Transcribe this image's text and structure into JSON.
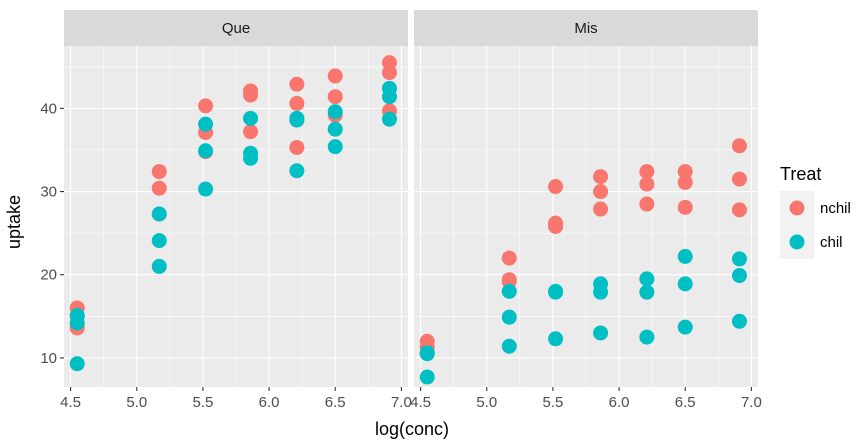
{
  "chart_data": {
    "type": "scatter",
    "xlabel": "log(conc)",
    "ylabel": "uptake",
    "xlim": [
      4.45,
      7.05
    ],
    "ylim": [
      6.5,
      47.5
    ],
    "x_ticks": [
      4.5,
      5.0,
      5.5,
      6.0,
      6.5,
      7.0
    ],
    "x_tick_labels": [
      "4.5",
      "5.0",
      "5.5",
      "6.0",
      "6.5",
      "7.0"
    ],
    "y_ticks": [
      10,
      20,
      30,
      40
    ],
    "y_tick_labels": [
      "10",
      "20",
      "30",
      "40"
    ],
    "grid": true,
    "legend": {
      "title": "Treat",
      "position": "right",
      "entries": [
        {
          "label": "nchil",
          "color": "#F8766D"
        },
        {
          "label": "chil",
          "color": "#00BFC4"
        }
      ]
    },
    "facets": [
      {
        "label": "Que",
        "series": [
          {
            "name": "nchil",
            "color": "#F8766D",
            "points": [
              [
                4.55,
                16.0
              ],
              [
                4.55,
                15.0
              ],
              [
                4.55,
                13.6
              ],
              [
                5.17,
                32.4
              ],
              [
                5.17,
                30.4
              ],
              [
                5.17,
                27.3
              ],
              [
                5.52,
                40.3
              ],
              [
                5.52,
                37.1
              ],
              [
                5.52,
                34.8
              ],
              [
                5.86,
                42.1
              ],
              [
                5.86,
                41.6
              ],
              [
                5.86,
                37.2
              ],
              [
                6.21,
                42.9
              ],
              [
                6.21,
                40.6
              ],
              [
                6.21,
                35.3
              ],
              [
                6.5,
                43.9
              ],
              [
                6.5,
                41.4
              ],
              [
                6.5,
                39.2
              ],
              [
                6.91,
                45.5
              ],
              [
                6.91,
                44.3
              ],
              [
                6.91,
                39.7
              ]
            ]
          },
          {
            "name": "chil",
            "color": "#00BFC4",
            "points": [
              [
                4.55,
                15.1
              ],
              [
                4.55,
                14.2
              ],
              [
                4.55,
                9.3
              ],
              [
                5.17,
                27.3
              ],
              [
                5.17,
                24.1
              ],
              [
                5.17,
                21.0
              ],
              [
                5.52,
                38.1
              ],
              [
                5.52,
                34.9
              ],
              [
                5.52,
                30.3
              ],
              [
                5.86,
                38.8
              ],
              [
                5.86,
                34.6
              ],
              [
                5.86,
                34.0
              ],
              [
                6.21,
                38.8
              ],
              [
                6.21,
                38.6
              ],
              [
                6.21,
                32.5
              ],
              [
                6.5,
                39.6
              ],
              [
                6.5,
                37.5
              ],
              [
                6.5,
                35.4
              ],
              [
                6.91,
                42.4
              ],
              [
                6.91,
                41.4
              ],
              [
                6.91,
                38.7
              ]
            ]
          }
        ]
      },
      {
        "label": "Mis",
        "series": [
          {
            "name": "nchil",
            "color": "#F8766D",
            "points": [
              [
                4.55,
                12.0
              ],
              [
                4.55,
                11.3
              ],
              [
                4.55,
                10.6
              ],
              [
                5.17,
                22.0
              ],
              [
                5.17,
                19.4
              ],
              [
                5.17,
                19.2
              ],
              [
                5.52,
                30.6
              ],
              [
                5.52,
                26.2
              ],
              [
                5.52,
                25.8
              ],
              [
                5.86,
                31.8
              ],
              [
                5.86,
                30.0
              ],
              [
                5.86,
                27.9
              ],
              [
                6.21,
                32.4
              ],
              [
                6.21,
                30.9
              ],
              [
                6.21,
                28.5
              ],
              [
                6.5,
                32.4
              ],
              [
                6.5,
                31.1
              ],
              [
                6.5,
                28.1
              ],
              [
                6.91,
                35.5
              ],
              [
                6.91,
                31.5
              ],
              [
                6.91,
                27.8
              ]
            ]
          },
          {
            "name": "chil",
            "color": "#00BFC4",
            "points": [
              [
                4.55,
                10.5
              ],
              [
                4.55,
                10.6
              ],
              [
                4.55,
                7.7
              ],
              [
                5.17,
                18.0
              ],
              [
                5.17,
                14.9
              ],
              [
                5.17,
                11.4
              ],
              [
                5.52,
                18.0
              ],
              [
                5.52,
                17.9
              ],
              [
                5.52,
                12.3
              ],
              [
                5.86,
                18.9
              ],
              [
                5.86,
                17.9
              ],
              [
                5.86,
                13.0
              ],
              [
                6.21,
                19.5
              ],
              [
                6.21,
                17.9
              ],
              [
                6.21,
                12.5
              ],
              [
                6.5,
                22.2
              ],
              [
                6.5,
                18.9
              ],
              [
                6.5,
                13.7
              ],
              [
                6.91,
                21.9
              ],
              [
                6.91,
                19.9
              ],
              [
                6.91,
                14.4
              ]
            ]
          }
        ]
      }
    ]
  }
}
